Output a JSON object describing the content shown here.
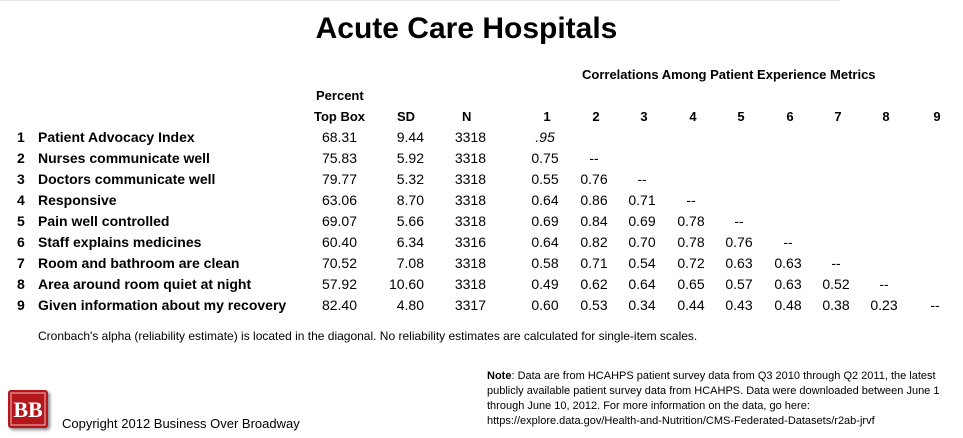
{
  "title": "Acute Care Hospitals",
  "correlations_title": "Correlations Among Patient Experience Metrics",
  "headers": {
    "percent_line1": "Percent",
    "percent_line2": "Top Box",
    "sd": "SD",
    "n": "N",
    "corr_cols": [
      "1",
      "2",
      "3",
      "4",
      "5",
      "6",
      "7",
      "8",
      "9"
    ]
  },
  "rows": [
    {
      "num": "1",
      "label": "Patient Advocacy Index",
      "pct": "68.31",
      "sd": "9.44",
      "n": "3318",
      "corr": [
        ".95",
        "",
        "",
        "",
        "",
        "",
        "",
        "",
        ""
      ]
    },
    {
      "num": "2",
      "label": "Nurses communicate well",
      "pct": "75.83",
      "sd": "5.92",
      "n": "3318",
      "corr": [
        "0.75",
        "--",
        "",
        "",
        "",
        "",
        "",
        "",
        ""
      ]
    },
    {
      "num": "3",
      "label": "Doctors communicate well",
      "pct": "79.77",
      "sd": "5.32",
      "n": "3318",
      "corr": [
        "0.55",
        "0.76",
        "--",
        "",
        "",
        "",
        "",
        "",
        ""
      ]
    },
    {
      "num": "4",
      "label": "Responsive",
      "pct": "63.06",
      "sd": "8.70",
      "n": "3318",
      "corr": [
        "0.64",
        "0.86",
        "0.71",
        "--",
        "",
        "",
        "",
        "",
        ""
      ]
    },
    {
      "num": "5",
      "label": "Pain well controlled",
      "pct": "69.07",
      "sd": "5.66",
      "n": "3318",
      "corr": [
        "0.69",
        "0.84",
        "0.69",
        "0.78",
        "--",
        "",
        "",
        "",
        ""
      ]
    },
    {
      "num": "6",
      "label": "Staff explains medicines",
      "pct": "60.40",
      "sd": "6.34",
      "n": "3316",
      "corr": [
        "0.64",
        "0.82",
        "0.70",
        "0.78",
        "0.76",
        "--",
        "",
        "",
        ""
      ]
    },
    {
      "num": "7",
      "label": "Room and bathroom are clean",
      "pct": "70.52",
      "sd": "7.08",
      "n": "3318",
      "corr": [
        "0.58",
        "0.71",
        "0.54",
        "0.72",
        "0.63",
        "0.63",
        "--",
        "",
        ""
      ]
    },
    {
      "num": "8",
      "label": "Area around room quiet at night",
      "pct": "57.92",
      "sd": "10.60",
      "n": "3318",
      "corr": [
        "0.49",
        "0.62",
        "0.64",
        "0.65",
        "0.57",
        "0.63",
        "0.52",
        "--",
        ""
      ]
    },
    {
      "num": "9",
      "label": "Given information about my recovery",
      "pct": "82.40",
      "sd": "4.80",
      "n": "3317",
      "corr": [
        "0.60",
        "0.53",
        "0.34",
        "0.44",
        "0.43",
        "0.48",
        "0.38",
        "0.23",
        "--"
      ]
    }
  ],
  "footnote": "Cronbach's alpha (reliability estimate) is located in the diagonal. No reliability estimates are calculated for single-item scales.",
  "note": {
    "label": "Note",
    "text": ": Data are from HCAHPS patient survey data from Q3 2010 through Q2 2011, the latest publicly available patient survey data from HCAHPS. Data were downloaded between June 1 through June 10, 2012. For more information on the data, go here: https://explore.data.gov/Health-and-Nutrition/CMS-Federated-Datasets/r2ab-jrvf"
  },
  "logo_text": "BB",
  "copyright": "Copyright 2012 Business Over Broadway",
  "colors": {
    "logo": "#b5161b"
  }
}
